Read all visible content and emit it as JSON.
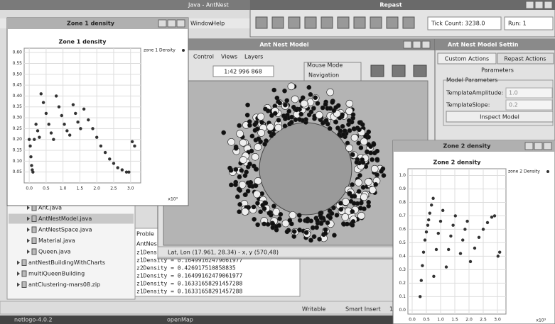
{
  "eclipse": {
    "title": "Java - AntNest",
    "menu": [
      "Window",
      "Help"
    ]
  },
  "repast": {
    "title": "Repast",
    "tick_count": "Tick Count: 3238.0",
    "run": "Run: 1"
  },
  "ant_nest_window": {
    "title": "Ant Nest Model",
    "menu": [
      "Control",
      "Views",
      "Layers"
    ],
    "scale": "1:42 996 868",
    "mouse_mode": "Mouse Mode",
    "navigation": "Navigation",
    "status": "Lat, Lon (17.961, 28.34) - x, y (570,48)"
  },
  "settings": {
    "title": "Ant Nest Model Settin",
    "tabs": [
      "Custom Actions",
      "Repast Actions"
    ],
    "heading": "Parameters",
    "group": "Model Parameters",
    "params": [
      {
        "label": "TemplateAmplitude:",
        "value": "1.0"
      },
      {
        "label": "TemplateSlope:",
        "value": "0.2"
      }
    ],
    "button": "Inspect Model"
  },
  "package_explorer": [
    "Ant.java",
    "AntNestModel.java",
    "AntNestSpace.java",
    "Material.java",
    "Queen.java",
    "antNestBuildingWithCharts",
    "multiQueenBuilding",
    "antClustering-mars08.zip"
  ],
  "console": {
    "tab": "Proble",
    "header": "AntNes",
    "lines": [
      "z1Dens",
      "z1Density = 0.16499162479061977",
      "z2Density = 0.426917510858835",
      "z1Density = 0.16499162479061977",
      "z1Density = 0.16331658291457288",
      "z1Density = 0.16331658291457288"
    ]
  },
  "status_bar": [
    "Writable",
    "Smart Insert",
    "1"
  ],
  "taskbar": [
    "netlogo-4.0.2",
    "openMap"
  ],
  "chart_data": [
    {
      "type": "scatter",
      "window_title": "Zone 1 density",
      "title": "Zone 1 density",
      "x_multiplier": "x10³",
      "x": [
        0.0,
        0.03,
        0.05,
        0.07,
        0.09,
        0.11,
        0.15,
        0.2,
        0.25,
        0.3,
        0.35,
        0.42,
        0.5,
        0.58,
        0.65,
        0.72,
        0.8,
        0.88,
        0.96,
        1.04,
        1.12,
        1.2,
        1.3,
        1.37,
        1.44,
        1.52,
        1.62,
        1.75,
        1.88,
        2.0,
        2.12,
        2.25,
        2.38,
        2.5,
        2.62,
        2.75,
        2.88,
        2.95,
        3.05,
        3.12
      ],
      "series": [
        {
          "name": "zone 1 Density",
          "color": "#333333",
          "values": [
            0.2,
            0.17,
            0.12,
            0.08,
            0.06,
            0.05,
            0.2,
            0.27,
            0.24,
            0.21,
            0.41,
            0.37,
            0.32,
            0.27,
            0.23,
            0.2,
            0.4,
            0.35,
            0.31,
            0.27,
            0.24,
            0.22,
            0.36,
            0.32,
            0.28,
            0.25,
            0.34,
            0.29,
            0.25,
            0.21,
            0.17,
            0.14,
            0.11,
            0.09,
            0.07,
            0.06,
            0.05,
            0.05,
            0.19,
            0.17
          ]
        }
      ],
      "xlim": [
        -0.15,
        3.3
      ],
      "ylim": [
        0,
        0.62
      ],
      "xticks": [
        {
          "value": 0,
          "label": "0.0"
        },
        0.5,
        {
          "value": 1,
          "label": "1.0"
        },
        1.5,
        {
          "value": 2,
          "label": "2.0"
        },
        2.5,
        {
          "value": 3,
          "label": "3.0"
        }
      ],
      "yticks": [
        {
          "value": 0.05,
          "label": "0.05"
        },
        {
          "value": 0.1,
          "label": "0.10"
        },
        {
          "value": 0.15,
          "label": "0.15"
        },
        {
          "value": 0.2,
          "label": "0.20"
        },
        {
          "value": 0.25,
          "label": "0.25"
        },
        {
          "value": 0.3,
          "label": "0.30"
        },
        {
          "value": 0.35,
          "label": "0.35"
        },
        {
          "value": 0.4,
          "label": "0.40"
        },
        {
          "value": 0.45,
          "label": "0.45"
        },
        {
          "value": 0.5,
          "label": "0.50"
        },
        {
          "value": 0.55,
          "label": "0.55"
        },
        {
          "value": 0.6,
          "label": "0.60"
        }
      ],
      "grid": true
    },
    {
      "type": "scatter",
      "window_title": "Zone 2 density",
      "title": "Zone 2 density",
      "x_multiplier": "x10³",
      "x": [
        0.28,
        0.32,
        0.36,
        0.4,
        0.45,
        0.5,
        0.55,
        0.58,
        0.62,
        0.68,
        0.74,
        0.76,
        0.85,
        0.92,
        1.0,
        1.08,
        1.2,
        1.28,
        1.36,
        1.44,
        1.52,
        1.7,
        1.78,
        1.86,
        1.94,
        2.05,
        2.2,
        2.35,
        2.5,
        2.65,
        2.8,
        2.9,
        3.02,
        3.08
      ],
      "series": [
        {
          "name": "zone 2 Density",
          "color": "#333333",
          "values": [
            0.1,
            0.22,
            0.33,
            0.43,
            0.52,
            0.58,
            0.63,
            0.67,
            0.72,
            0.78,
            0.83,
            0.25,
            0.45,
            0.57,
            0.66,
            0.74,
            0.32,
            0.45,
            0.55,
            0.63,
            0.7,
            0.42,
            0.52,
            0.6,
            0.66,
            0.36,
            0.46,
            0.54,
            0.6,
            0.65,
            0.69,
            0.7,
            0.4,
            0.43
          ]
        }
      ],
      "xlim": [
        -0.15,
        3.3
      ],
      "ylim": [
        -0.03,
        1.05
      ],
      "xticks": [
        {
          "value": 0,
          "label": "0.0"
        },
        0.5,
        {
          "value": 1,
          "label": "1.0"
        },
        1.5,
        {
          "value": 2,
          "label": "2.0"
        },
        2.5,
        {
          "value": 3,
          "label": "3.0"
        }
      ],
      "yticks": [
        {
          "value": 0,
          "label": "0.0"
        },
        0.1,
        0.2,
        0.3,
        0.4,
        0.5,
        0.6,
        0.7,
        0.8,
        0.9,
        {
          "value": 1,
          "label": "1.0"
        }
      ],
      "grid": true
    }
  ]
}
